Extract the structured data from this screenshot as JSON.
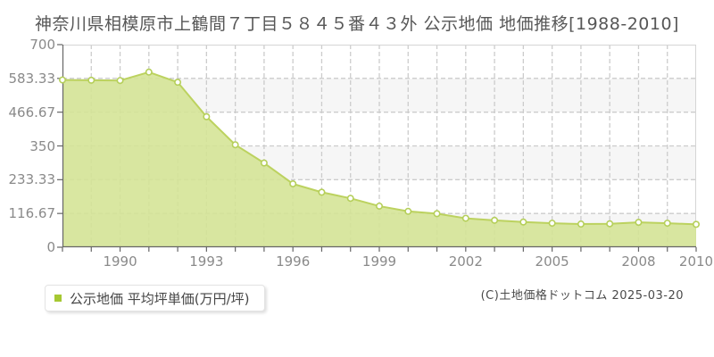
{
  "title": "神奈川県相模原市上鶴間７丁目５８４５番４３外 公示地価 地価推移[1988-2010]",
  "legend": {
    "label": "公示地価 平均坪単価(万円/坪)",
    "marker_color": "#a6c832"
  },
  "copyright": "(C)土地価格ドットコム 2025-03-20",
  "chart_data": {
    "type": "area",
    "title": "神奈川県相模原市上鶴間７丁目５８４５番４３外 公示地価 地価推移[1988-2010]",
    "series": [
      {
        "name": "公示地価 平均坪単価(万円/坪)",
        "x": [
          1988,
          1989,
          1990,
          1991,
          1992,
          1993,
          1994,
          1995,
          1996,
          1997,
          1998,
          1999,
          2000,
          2001,
          2002,
          2003,
          2004,
          2005,
          2006,
          2007,
          2008,
          2009,
          2010
        ],
        "values": [
          578,
          577,
          576,
          605,
          570,
          451,
          354,
          291,
          219,
          190,
          169,
          142,
          124,
          116,
          100,
          93,
          87,
          83,
          80,
          81,
          86,
          83,
          79
        ]
      }
    ],
    "xlabel": "",
    "ylabel": "",
    "xlim": [
      1988,
      2010
    ],
    "ylim": [
      0,
      700
    ],
    "yticks": [
      0,
      116.67,
      233.33,
      350,
      466.67,
      583.33,
      700
    ],
    "ytick_labels": [
      "0",
      "116.67",
      "233.33",
      "350",
      "466.67",
      "583.33",
      "700"
    ],
    "xticks": [
      1990,
      1993,
      1996,
      1999,
      2002,
      2005,
      2008,
      2010
    ],
    "xtick_labels": [
      "1990",
      "1993",
      "1996",
      "1999",
      "2002",
      "2005",
      "2008",
      "2010"
    ],
    "grid": true,
    "legend_position": "bottom-left",
    "colors": {
      "area_fill": "#d4e494",
      "line": "#bcd25f",
      "marker_fill": "#ffffff",
      "marker_stroke": "#b5cf5a",
      "legend_marker": "#a6c832",
      "grid": "#cccccc",
      "axis": "#666666",
      "plot_border": "#d5d5d5",
      "band_gray": "#f6f6f6",
      "tick_text": "#8a8a8a"
    }
  }
}
